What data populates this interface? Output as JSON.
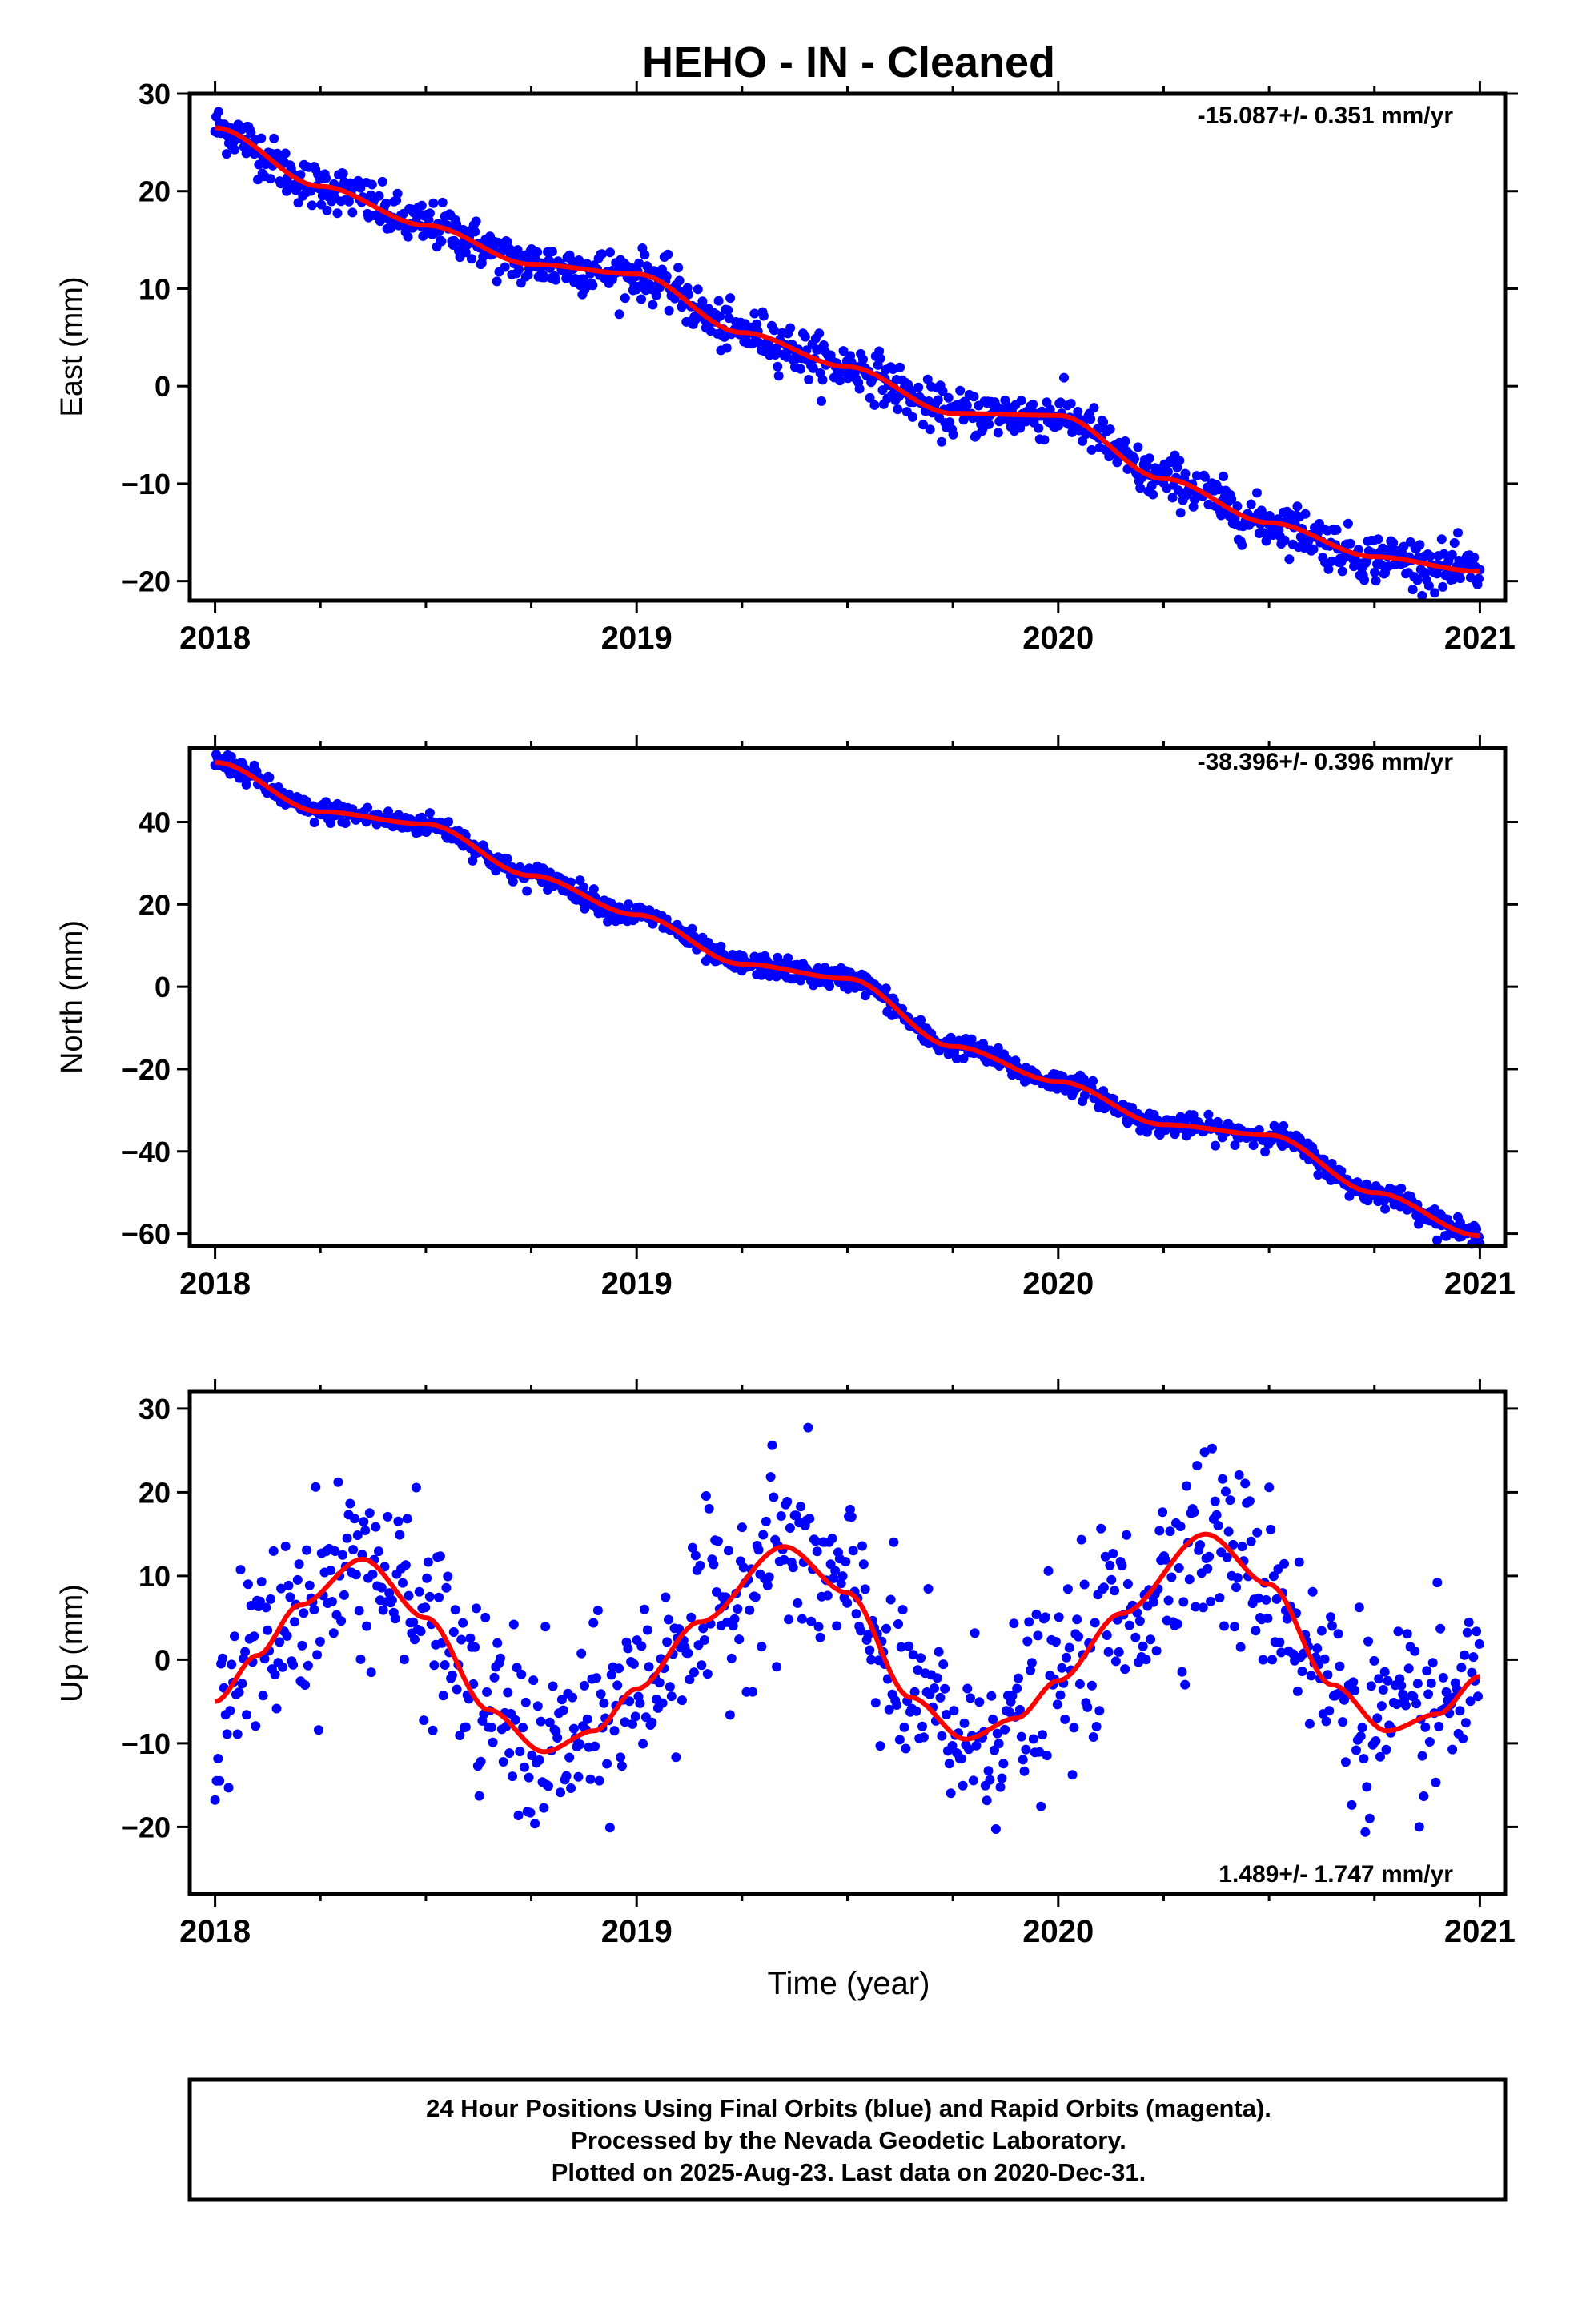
{
  "title": "HEHO  - IN - Cleaned",
  "xlabel": "Time (year)",
  "footer": {
    "line1": "24 Hour Positions Using Final Orbits (blue) and Rapid Orbits (magenta).",
    "line2": "Processed by the Nevada Geodetic Laboratory.",
    "line3": "Plotted on 2025-Aug-23. Last data on 2020-Dec-31."
  },
  "colors": {
    "points": "#0000ff",
    "model": "#ff0000",
    "axes": "#000000"
  },
  "chart_data": [
    {
      "type": "scatter",
      "name": "east",
      "ylabel": "East (mm)",
      "rate_text": "-15.087+/- 0.351 mm/yr",
      "rate_position": "top-right",
      "xlim": [
        2017.94,
        2021.06
      ],
      "ylim": [
        -22,
        30
      ],
      "xticks": [
        2018,
        2019,
        2020,
        2021
      ],
      "xtick_labels": [
        "2018",
        "2019",
        "2020",
        "2021"
      ],
      "yticks": [
        -20,
        -10,
        0,
        10,
        20,
        30
      ],
      "ytick_labels": [
        "−20",
        "−10",
        "0",
        "10",
        "20",
        "30"
      ],
      "grid": false,
      "model": {
        "x": [
          2018.0,
          2018.25,
          2018.5,
          2018.75,
          2019.0,
          2019.25,
          2019.5,
          2019.75,
          2020.0,
          2020.25,
          2020.5,
          2020.75,
          2021.0
        ],
        "y": [
          26.5,
          20.5,
          16.5,
          12.5,
          11.5,
          5.5,
          2.0,
          -2.8,
          -3.0,
          -9.5,
          -14.0,
          -17.5,
          -19.0
        ]
      },
      "scatter_sd": 1.2
    },
    {
      "type": "scatter",
      "name": "north",
      "ylabel": "North (mm)",
      "rate_text": "-38.396+/- 0.396 mm/yr",
      "rate_position": "top-right",
      "xlim": [
        2017.94,
        2021.06
      ],
      "ylim": [
        -63,
        58
      ],
      "xticks": [
        2018,
        2019,
        2020,
        2021
      ],
      "xtick_labels": [
        "2018",
        "2019",
        "2020",
        "2021"
      ],
      "yticks": [
        -60,
        -40,
        -20,
        0,
        20,
        40
      ],
      "ytick_labels": [
        "−60",
        "−40",
        "−20",
        "0",
        "20",
        "40"
      ],
      "grid": false,
      "model": {
        "x": [
          2018.0,
          2018.25,
          2018.5,
          2018.75,
          2019.0,
          2019.25,
          2019.5,
          2019.75,
          2020.0,
          2020.25,
          2020.5,
          2020.75,
          2021.0
        ],
        "y": [
          54.5,
          42.5,
          39.5,
          27.0,
          17.5,
          5.5,
          2.0,
          -14.5,
          -23.0,
          -33.5,
          -36.0,
          -50.0,
          -60.5
        ]
      },
      "scatter_sd": 1.3
    },
    {
      "type": "scatter",
      "name": "up",
      "ylabel": "Up (mm)",
      "rate_text": "1.489+/- 1.747 mm/yr",
      "rate_position": "bottom-right",
      "xlim": [
        2017.94,
        2021.06
      ],
      "ylim": [
        -28,
        32
      ],
      "xticks": [
        2018,
        2019,
        2020,
        2021
      ],
      "xtick_labels": [
        "2018",
        "2019",
        "2020",
        "2021"
      ],
      "yticks": [
        -20,
        -10,
        0,
        10,
        20,
        30
      ],
      "ytick_labels": [
        "−20",
        "−10",
        "0",
        "10",
        "20",
        "30"
      ],
      "grid": false,
      "model": {
        "x": [
          2018.0,
          2018.1,
          2018.2,
          2018.35,
          2018.5,
          2018.65,
          2018.78,
          2018.9,
          2019.0,
          2019.15,
          2019.35,
          2019.5,
          2019.65,
          2019.78,
          2019.9,
          2020.0,
          2020.15,
          2020.35,
          2020.5,
          2020.65,
          2020.78,
          2020.9,
          2021.0
        ],
        "y": [
          -5.0,
          0.5,
          6.5,
          12.0,
          5.0,
          -6.0,
          -11.0,
          -8.5,
          -3.5,
          4.5,
          13.5,
          8.0,
          -4.5,
          -9.5,
          -7.0,
          -2.5,
          5.5,
          15.0,
          9.0,
          -3.0,
          -8.5,
          -6.5,
          -2.0
        ]
      },
      "scatter_sd": 5.5
    }
  ]
}
